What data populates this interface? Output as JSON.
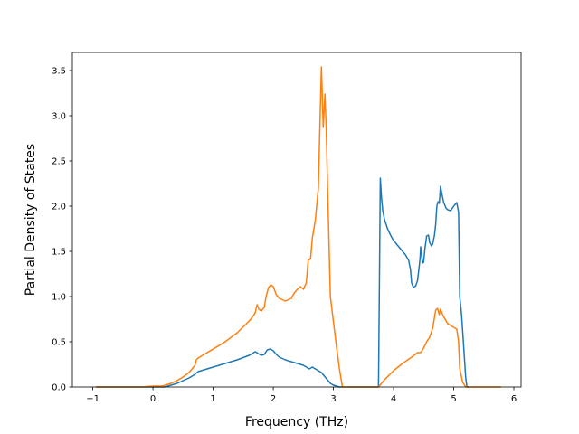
{
  "chart_data": {
    "type": "line",
    "title": "",
    "xlabel": "Frequency (THz)",
    "ylabel": "Partial Density of States",
    "xlim": [
      -1.34,
      6.12
    ],
    "ylim": [
      0,
      3.7
    ],
    "xticks": [
      -1,
      0,
      1,
      2,
      3,
      4,
      5,
      6
    ],
    "yticks": [
      0.0,
      0.5,
      1.0,
      1.5,
      2.0,
      2.5,
      3.0,
      3.5
    ],
    "grid": false,
    "legend": "none",
    "series": [
      {
        "color": "#1f77b4",
        "points": [
          [
            -0.95,
            0.0
          ],
          [
            0.0,
            0.0
          ],
          [
            0.2,
            0.0
          ],
          [
            0.3,
            0.02
          ],
          [
            0.4,
            0.04
          ],
          [
            0.5,
            0.07
          ],
          [
            0.6,
            0.1
          ],
          [
            0.7,
            0.14
          ],
          [
            0.75,
            0.17
          ],
          [
            0.8,
            0.18
          ],
          [
            0.9,
            0.2
          ],
          [
            1.0,
            0.22
          ],
          [
            1.2,
            0.26
          ],
          [
            1.4,
            0.3
          ],
          [
            1.6,
            0.35
          ],
          [
            1.7,
            0.39
          ],
          [
            1.75,
            0.37
          ],
          [
            1.8,
            0.35
          ],
          [
            1.85,
            0.36
          ],
          [
            1.9,
            0.41
          ],
          [
            1.95,
            0.42
          ],
          [
            2.0,
            0.4
          ],
          [
            2.05,
            0.36
          ],
          [
            2.1,
            0.33
          ],
          [
            2.2,
            0.3
          ],
          [
            2.3,
            0.28
          ],
          [
            2.4,
            0.26
          ],
          [
            2.5,
            0.24
          ],
          [
            2.55,
            0.22
          ],
          [
            2.6,
            0.2
          ],
          [
            2.65,
            0.22
          ],
          [
            2.7,
            0.2
          ],
          [
            2.8,
            0.16
          ],
          [
            2.85,
            0.12
          ],
          [
            2.9,
            0.08
          ],
          [
            2.95,
            0.04
          ],
          [
            3.0,
            0.02
          ],
          [
            3.05,
            0.01
          ],
          [
            3.1,
            0.0
          ],
          [
            3.75,
            0.0
          ],
          [
            3.78,
            2.31
          ],
          [
            3.8,
            2.1
          ],
          [
            3.82,
            1.95
          ],
          [
            3.85,
            1.85
          ],
          [
            3.9,
            1.75
          ],
          [
            3.95,
            1.68
          ],
          [
            4.0,
            1.62
          ],
          [
            4.05,
            1.58
          ],
          [
            4.1,
            1.54
          ],
          [
            4.15,
            1.5
          ],
          [
            4.2,
            1.46
          ],
          [
            4.25,
            1.4
          ],
          [
            4.28,
            1.3
          ],
          [
            4.3,
            1.15
          ],
          [
            4.33,
            1.1
          ],
          [
            4.37,
            1.12
          ],
          [
            4.4,
            1.18
          ],
          [
            4.42,
            1.3
          ],
          [
            4.44,
            1.42
          ],
          [
            4.45,
            1.55
          ],
          [
            4.47,
            1.44
          ],
          [
            4.48,
            1.37
          ],
          [
            4.5,
            1.38
          ],
          [
            4.52,
            1.52
          ],
          [
            4.55,
            1.67
          ],
          [
            4.58,
            1.68
          ],
          [
            4.6,
            1.6
          ],
          [
            4.63,
            1.56
          ],
          [
            4.65,
            1.58
          ],
          [
            4.68,
            1.68
          ],
          [
            4.7,
            1.8
          ],
          [
            4.72,
            2.0
          ],
          [
            4.74,
            2.05
          ],
          [
            4.76,
            2.03
          ],
          [
            4.78,
            2.22
          ],
          [
            4.8,
            2.15
          ],
          [
            4.83,
            2.05
          ],
          [
            4.87,
            1.98
          ],
          [
            4.9,
            1.96
          ],
          [
            4.95,
            1.95
          ],
          [
            5.0,
            2.0
          ],
          [
            5.05,
            2.04
          ],
          [
            5.08,
            1.93
          ],
          [
            5.1,
            1.0
          ],
          [
            5.13,
            0.8
          ],
          [
            5.16,
            0.5
          ],
          [
            5.18,
            0.3
          ],
          [
            5.2,
            0.1
          ],
          [
            5.22,
            0.0
          ],
          [
            5.25,
            0.0
          ]
        ]
      },
      {
        "color": "#ff7f0e",
        "points": [
          [
            -0.95,
            0.0
          ],
          [
            -0.2,
            0.0
          ],
          [
            0.0,
            0.01
          ],
          [
            0.15,
            0.01
          ],
          [
            0.3,
            0.04
          ],
          [
            0.4,
            0.07
          ],
          [
            0.5,
            0.11
          ],
          [
            0.6,
            0.16
          ],
          [
            0.65,
            0.2
          ],
          [
            0.7,
            0.24
          ],
          [
            0.72,
            0.3
          ],
          [
            0.75,
            0.32
          ],
          [
            0.85,
            0.36
          ],
          [
            1.0,
            0.42
          ],
          [
            1.2,
            0.5
          ],
          [
            1.4,
            0.6
          ],
          [
            1.6,
            0.73
          ],
          [
            1.65,
            0.77
          ],
          [
            1.7,
            0.82
          ],
          [
            1.73,
            0.91
          ],
          [
            1.76,
            0.86
          ],
          [
            1.8,
            0.84
          ],
          [
            1.85,
            0.88
          ],
          [
            1.88,
            1.0
          ],
          [
            1.92,
            1.1
          ],
          [
            1.96,
            1.13
          ],
          [
            2.0,
            1.11
          ],
          [
            2.05,
            1.02
          ],
          [
            2.1,
            0.98
          ],
          [
            2.2,
            0.95
          ],
          [
            2.3,
            0.98
          ],
          [
            2.35,
            1.04
          ],
          [
            2.4,
            1.08
          ],
          [
            2.45,
            1.11
          ],
          [
            2.5,
            1.08
          ],
          [
            2.55,
            1.15
          ],
          [
            2.58,
            1.4
          ],
          [
            2.62,
            1.42
          ],
          [
            2.65,
            1.65
          ],
          [
            2.7,
            1.85
          ],
          [
            2.75,
            2.2
          ],
          [
            2.78,
            3.0
          ],
          [
            2.8,
            3.54
          ],
          [
            2.83,
            2.87
          ],
          [
            2.86,
            3.24
          ],
          [
            2.88,
            2.85
          ],
          [
            2.9,
            2.3
          ],
          [
            2.93,
            1.5
          ],
          [
            2.95,
            1.0
          ],
          [
            3.0,
            0.72
          ],
          [
            3.05,
            0.45
          ],
          [
            3.1,
            0.2
          ],
          [
            3.15,
            0.0
          ],
          [
            3.75,
            0.0
          ],
          [
            3.85,
            0.08
          ],
          [
            4.0,
            0.18
          ],
          [
            4.15,
            0.26
          ],
          [
            4.3,
            0.33
          ],
          [
            4.4,
            0.38
          ],
          [
            4.45,
            0.38
          ],
          [
            4.5,
            0.43
          ],
          [
            4.55,
            0.5
          ],
          [
            4.6,
            0.55
          ],
          [
            4.65,
            0.65
          ],
          [
            4.7,
            0.85
          ],
          [
            4.73,
            0.87
          ],
          [
            4.76,
            0.8
          ],
          [
            4.78,
            0.86
          ],
          [
            4.83,
            0.78
          ],
          [
            4.9,
            0.7
          ],
          [
            5.0,
            0.66
          ],
          [
            5.05,
            0.64
          ],
          [
            5.08,
            0.5
          ],
          [
            5.1,
            0.2
          ],
          [
            5.15,
            0.05
          ],
          [
            5.2,
            0.0
          ],
          [
            5.79,
            0.0
          ]
        ]
      }
    ]
  }
}
